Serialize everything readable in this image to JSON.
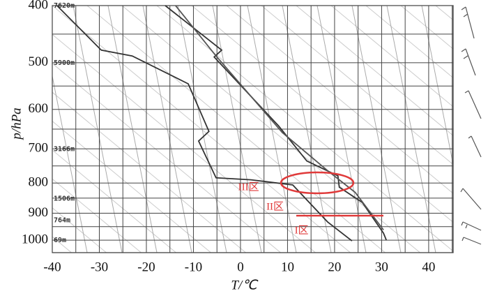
{
  "chart_data": {
    "type": "line",
    "x_label": "T/℃",
    "y_label": "p/hPa",
    "xlim": [
      -40,
      45.2
    ],
    "xticks": [
      -40,
      -30,
      -20,
      -10,
      0,
      10,
      20,
      30,
      40
    ],
    "ylim": [
      1050,
      400
    ],
    "yticks": [
      400,
      500,
      600,
      700,
      800,
      900,
      1000
    ],
    "y_scale": "log",
    "grid": true,
    "series": [
      {
        "color": "#333333",
        "x": [
          -39,
          -29.6,
          -23,
          -11.1,
          -6.7,
          -8.9,
          -5.2,
          2.2,
          11.1,
          18.5,
          23.7
        ],
        "values": [
          400,
          476,
          487,
          543,
          654,
          679,
          784,
          790,
          806,
          931,
          1003
        ]
      },
      {
        "color": "#333333",
        "x": [
          -16,
          -4,
          -5.6,
          8.1,
          14.1,
          20.7,
          21,
          25.9,
          30.4,
          31
        ],
        "values": [
          400,
          476,
          489,
          640,
          734,
          778,
          813,
          863,
          973,
          1000
        ]
      },
      {
        "color": "#555555",
        "x": [
          -13.8,
          -5.2,
          8.9,
          18.5,
          24.4,
          30.4
        ],
        "values": [
          400,
          487,
          657,
          762,
          830,
          961
        ]
      }
    ],
    "height_labels": [
      {
        "p": 400,
        "label": "7620m"
      },
      {
        "p": 500,
        "label": "5900m"
      },
      {
        "p": 700,
        "label": "3166m"
      },
      {
        "p": 850,
        "label": "1506m"
      },
      {
        "p": 925,
        "label": "764m"
      },
      {
        "p": 1000,
        "label": "69m"
      }
    ],
    "zone_labels": [
      {
        "x": -0.5,
        "p": 815,
        "label": "III区"
      },
      {
        "x": 5.5,
        "p": 880,
        "label": "II区"
      },
      {
        "x": 11.5,
        "p": 965,
        "label": "I区"
      }
    ]
  }
}
